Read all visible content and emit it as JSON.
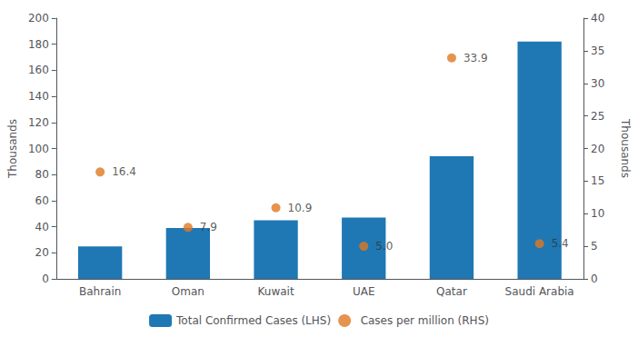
{
  "chart_data": {
    "type": "bar",
    "categories": [
      "Bahrain",
      "Oman",
      "Kuwait",
      "UAE",
      "Qatar",
      "Saudi Arabia"
    ],
    "series": [
      {
        "name": "Total Confirmed Cases (LHS)",
        "type": "bar",
        "color": "#1F78B4",
        "values": [
          25,
          39,
          45,
          47,
          94,
          182
        ]
      },
      {
        "name": "Cases per million (RHS)",
        "type": "scatter",
        "color": "#E07820",
        "axis": "y2",
        "marker": "circle",
        "data_labels": true,
        "values": [
          16.4,
          7.9,
          10.9,
          5.0,
          33.9,
          5.4
        ],
        "value_labels": [
          "16.4",
          "7.9",
          "10.9",
          "5.0",
          "33.9",
          "5.4"
        ]
      }
    ],
    "ylabel": "Thousands",
    "y2label": "Thousands",
    "ylim": [
      0,
      200
    ],
    "yticks": [
      0,
      20,
      40,
      60,
      80,
      100,
      120,
      140,
      160,
      180,
      200
    ],
    "y2lim": [
      0,
      40
    ],
    "y2ticks": [
      0,
      5,
      10,
      15,
      20,
      25,
      30,
      35,
      40
    ],
    "grid": false,
    "legend": "bottom"
  }
}
